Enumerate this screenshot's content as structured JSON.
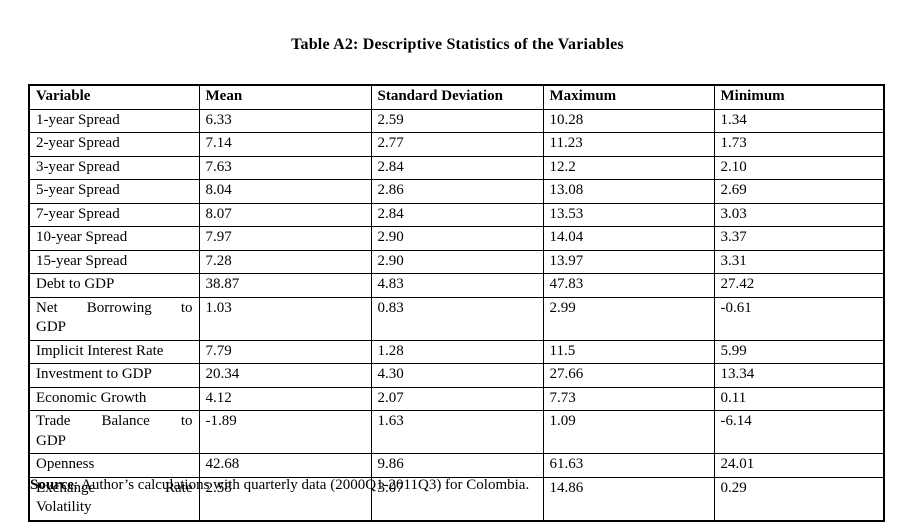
{
  "title": "Table A2: Descriptive Statistics of the Variables",
  "table": {
    "columns": [
      "Variable",
      "Mean",
      "Standard Deviation",
      "Maximum",
      "Minimum"
    ],
    "rows": [
      {
        "variable": "1-year Spread",
        "mean": "6.33",
        "std_dev": "2.59",
        "maximum": "10.28",
        "minimum": "1.34"
      },
      {
        "variable": "2-year Spread",
        "mean": "7.14",
        "std_dev": "2.77",
        "maximum": "11.23",
        "minimum": "1.73"
      },
      {
        "variable": "3-year Spread",
        "mean": "7.63",
        "std_dev": "2.84",
        "maximum": "12.2",
        "minimum": "2.10"
      },
      {
        "variable": "5-year Spread",
        "mean": "8.04",
        "std_dev": "2.86",
        "maximum": "13.08",
        "minimum": "2.69"
      },
      {
        "variable": "7-year Spread",
        "mean": "8.07",
        "std_dev": "2.84",
        "maximum": "13.53",
        "minimum": "3.03"
      },
      {
        "variable": "10-year Spread",
        "mean": "7.97",
        "std_dev": "2.90",
        "maximum": "14.04",
        "minimum": "3.37"
      },
      {
        "variable": "15-year Spread",
        "mean": "7.28",
        "std_dev": "2.90",
        "maximum": "13.97",
        "minimum": "3.31"
      },
      {
        "variable": "Debt to GDP",
        "mean": "38.87",
        "std_dev": "4.83",
        "maximum": "47.83",
        "minimum": "27.42"
      },
      {
        "variable": "Net Borrowing to\nGDP",
        "mean": "1.03",
        "std_dev": "0.83",
        "maximum": "2.99",
        "minimum": "-0.61"
      },
      {
        "variable": "Implicit Interest Rate",
        "mean": "7.79",
        "std_dev": "1.28",
        "maximum": "11.5",
        "minimum": "5.99"
      },
      {
        "variable": "Investment to GDP",
        "mean": "20.34",
        "std_dev": "4.30",
        "maximum": "27.66",
        "minimum": "13.34"
      },
      {
        "variable": "Economic Growth",
        "mean": "4.12",
        "std_dev": "2.07",
        "maximum": "7.73",
        "minimum": "0.11"
      },
      {
        "variable": "Trade Balance to\nGDP",
        "mean": "-1.89",
        "std_dev": "1.63",
        "maximum": "1.09",
        "minimum": "-6.14"
      },
      {
        "variable": "Openness",
        "mean": "42.68",
        "std_dev": "9.86",
        "maximum": "61.63",
        "minimum": "24.01"
      },
      {
        "variable": "Exchange Rate\nVolatility",
        "mean": "2.58",
        "std_dev": "3.07",
        "maximum": "14.86",
        "minimum": "0.29"
      }
    ]
  },
  "source_note": {
    "label": "Source",
    "rest": ": Author’s calculations with quarterly data (2000Q1-2011Q3) for Colombia."
  },
  "colors": {
    "text": "#000000",
    "background": "#ffffff",
    "border": "#000000"
  },
  "chart_data": {
    "type": "table",
    "title": "Table A2: Descriptive Statistics of the Variables",
    "columns": [
      "Variable",
      "Mean",
      "Standard Deviation",
      "Maximum",
      "Minimum"
    ],
    "rows": [
      [
        "1-year Spread",
        6.33,
        2.59,
        10.28,
        1.34
      ],
      [
        "2-year Spread",
        7.14,
        2.77,
        11.23,
        1.73
      ],
      [
        "3-year Spread",
        7.63,
        2.84,
        12.2,
        2.1
      ],
      [
        "5-year Spread",
        8.04,
        2.86,
        13.08,
        2.69
      ],
      [
        "7-year Spread",
        8.07,
        2.84,
        13.53,
        3.03
      ],
      [
        "10-year Spread",
        7.97,
        2.9,
        14.04,
        3.37
      ],
      [
        "15-year Spread",
        7.28,
        2.9,
        13.97,
        3.31
      ],
      [
        "Debt to GDP",
        38.87,
        4.83,
        47.83,
        27.42
      ],
      [
        "Net Borrowing to GDP",
        1.03,
        0.83,
        2.99,
        -0.61
      ],
      [
        "Implicit Interest Rate",
        7.79,
        1.28,
        11.5,
        5.99
      ],
      [
        "Investment to GDP",
        20.34,
        4.3,
        27.66,
        13.34
      ],
      [
        "Economic Growth",
        4.12,
        2.07,
        7.73,
        0.11
      ],
      [
        "Trade Balance to GDP",
        -1.89,
        1.63,
        1.09,
        -6.14
      ],
      [
        "Openness",
        42.68,
        9.86,
        61.63,
        24.01
      ],
      [
        "Exchange Rate Volatility",
        2.58,
        3.07,
        14.86,
        0.29
      ]
    ]
  }
}
